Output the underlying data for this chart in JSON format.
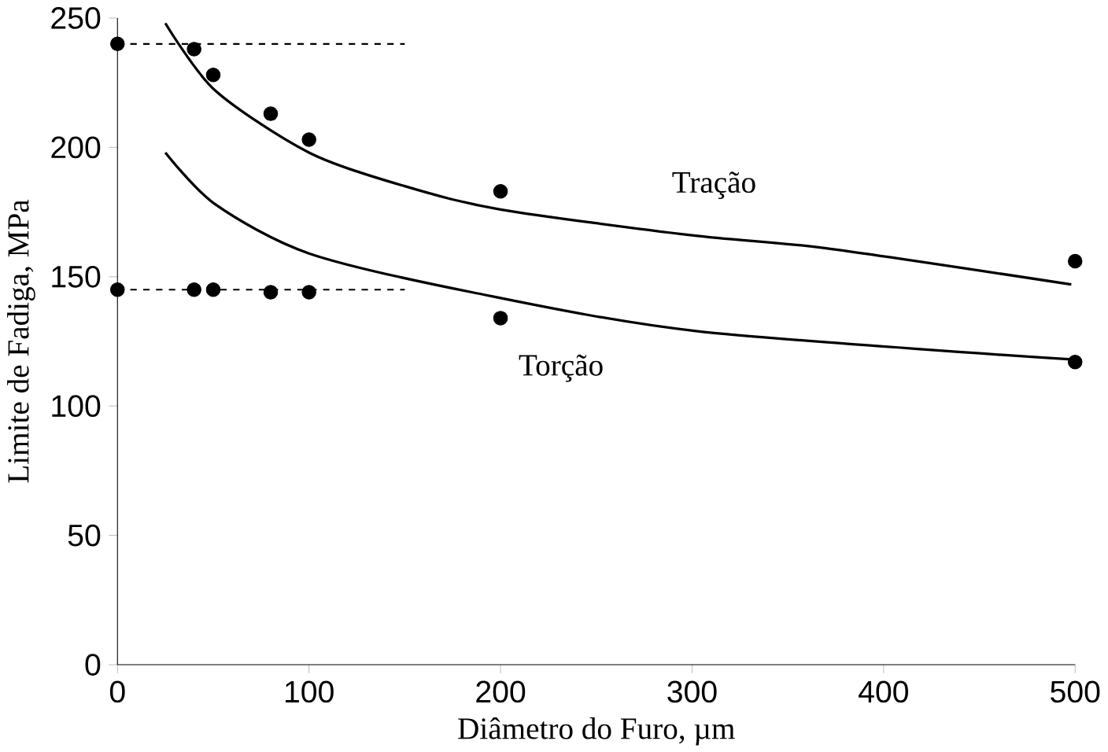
{
  "chart_data": {
    "type": "scatter",
    "xlabel": "Diâmetro do Furo, µm",
    "ylabel": "Limite de Fadiga, MPa",
    "xlim": [
      0,
      500
    ],
    "ylim": [
      0,
      250
    ],
    "xticks": [
      0,
      100,
      200,
      300,
      400,
      500
    ],
    "yticks": [
      0,
      50,
      100,
      150,
      200,
      250
    ],
    "grid": false,
    "series": [
      {
        "color": "#000000",
        "x": [
          0,
          40,
          50,
          80,
          100,
          200,
          500
        ],
        "values": [
          240,
          238,
          228,
          213,
          203,
          183,
          156
        ]
      },
      {
        "color": "#000000",
        "x": [
          0,
          40,
          50,
          80,
          100,
          200,
          500
        ],
        "values": [
          145,
          145,
          145,
          144,
          144,
          134,
          117
        ]
      },
      {
        "type": "line",
        "name": "Tração",
        "color": "#000000",
        "line_style": "solid",
        "x": [
          25,
          51,
          100,
          150,
          200,
          300,
          370,
          498
        ],
        "values": [
          248,
          222,
          198,
          185,
          176,
          166,
          161,
          147
        ]
      },
      {
        "type": "line",
        "name": "Torção",
        "color": "#000000",
        "line_style": "solid",
        "x": [
          25,
          51,
          100,
          185,
          302,
          498
        ],
        "values": [
          198,
          178,
          159,
          144,
          129,
          118
        ]
      }
    ],
    "ref_lines": [
      {
        "axis": "y",
        "value": 240,
        "line_style": "dashed"
      },
      {
        "axis": "y",
        "value": 145,
        "line_style": "dashed"
      }
    ]
  }
}
